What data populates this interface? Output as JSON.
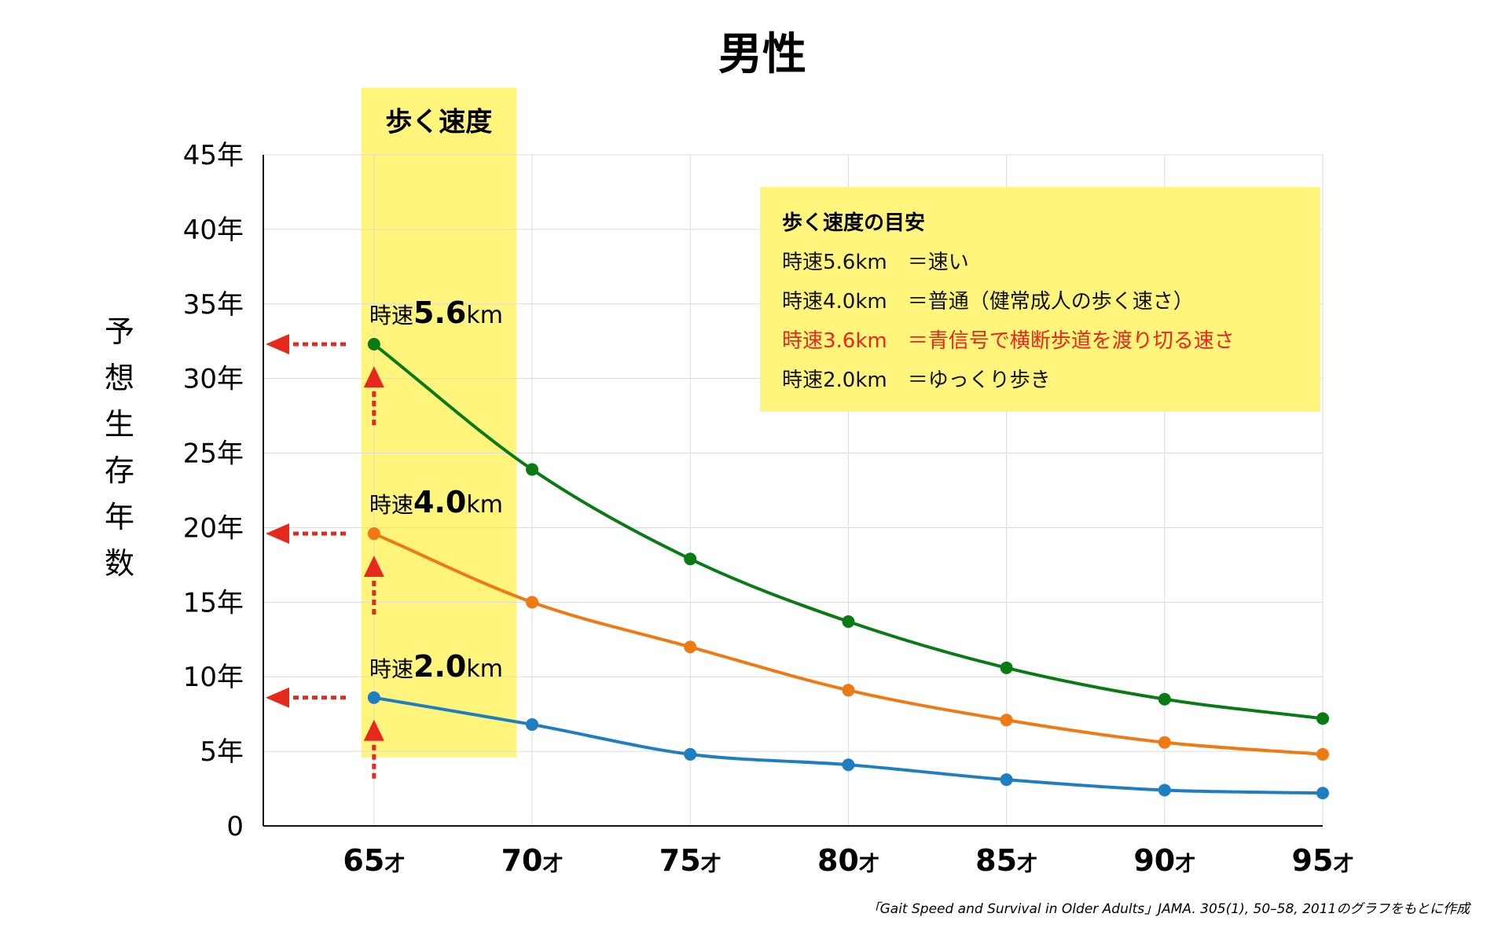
{
  "chart_data": {
    "type": "line",
    "title": "男性",
    "ylabel": "予想生存年数",
    "xlabel": "",
    "x": [
      65,
      70,
      75,
      80,
      85,
      90,
      95
    ],
    "x_tick_labels": [
      "65",
      "70",
      "75",
      "80",
      "85",
      "90",
      "95"
    ],
    "x_tick_unit": "才",
    "y_ticks": [
      0,
      5,
      10,
      15,
      20,
      25,
      30,
      35,
      40,
      45
    ],
    "y_tick_labels": [
      "0",
      "5年",
      "10年",
      "15年",
      "20年",
      "25年",
      "30年",
      "35年",
      "40年",
      "45年"
    ],
    "xlim": [
      61.5,
      95
    ],
    "ylim": [
      0,
      45
    ],
    "grid": true,
    "series": [
      {
        "name": "時速5.6km",
        "prefix": "時速",
        "number": "5.6",
        "suffix": "km",
        "color": "#0a7a14",
        "values": [
          32.3,
          23.9,
          17.9,
          13.7,
          10.6,
          8.5,
          7.2
        ]
      },
      {
        "name": "時速4.0km",
        "prefix": "時速",
        "number": "4.0",
        "suffix": "km",
        "color": "#ef7a14",
        "values": [
          19.6,
          15.0,
          12.0,
          9.1,
          7.1,
          5.6,
          4.8
        ]
      },
      {
        "name": "時速2.0km",
        "prefix": "時速",
        "number": "2.0",
        "suffix": "km",
        "color": "#1f7ec2",
        "values": [
          8.6,
          6.8,
          4.8,
          4.1,
          3.1,
          2.4,
          2.2
        ]
      }
    ],
    "highlight_band": {
      "label": "歩く速度",
      "x_range": [
        64.6,
        69.5
      ],
      "y_range": [
        4.6,
        49.5
      ],
      "color": "#fff47c"
    },
    "annotation_arrow_color": "#e8281c",
    "legend": {
      "placement": "top-right",
      "title": "歩く速度の目安",
      "items": [
        {
          "text": "時速5.6km　＝速い",
          "color": "#111111"
        },
        {
          "text": "時速4.0km　＝普通（健常成人の歩く速さ）",
          "color": "#111111"
        },
        {
          "text": "時速3.6km　＝青信号で横断歩道を渡り切る速さ",
          "color": "#e8281c"
        },
        {
          "text": "時速2.0km　＝ゆっくり歩き",
          "color": "#111111"
        }
      ]
    },
    "source": "「Gait Speed and Survival in Older Adults」JAMA. 305(1), 50–58, 2011のグラフをもとに作成"
  }
}
